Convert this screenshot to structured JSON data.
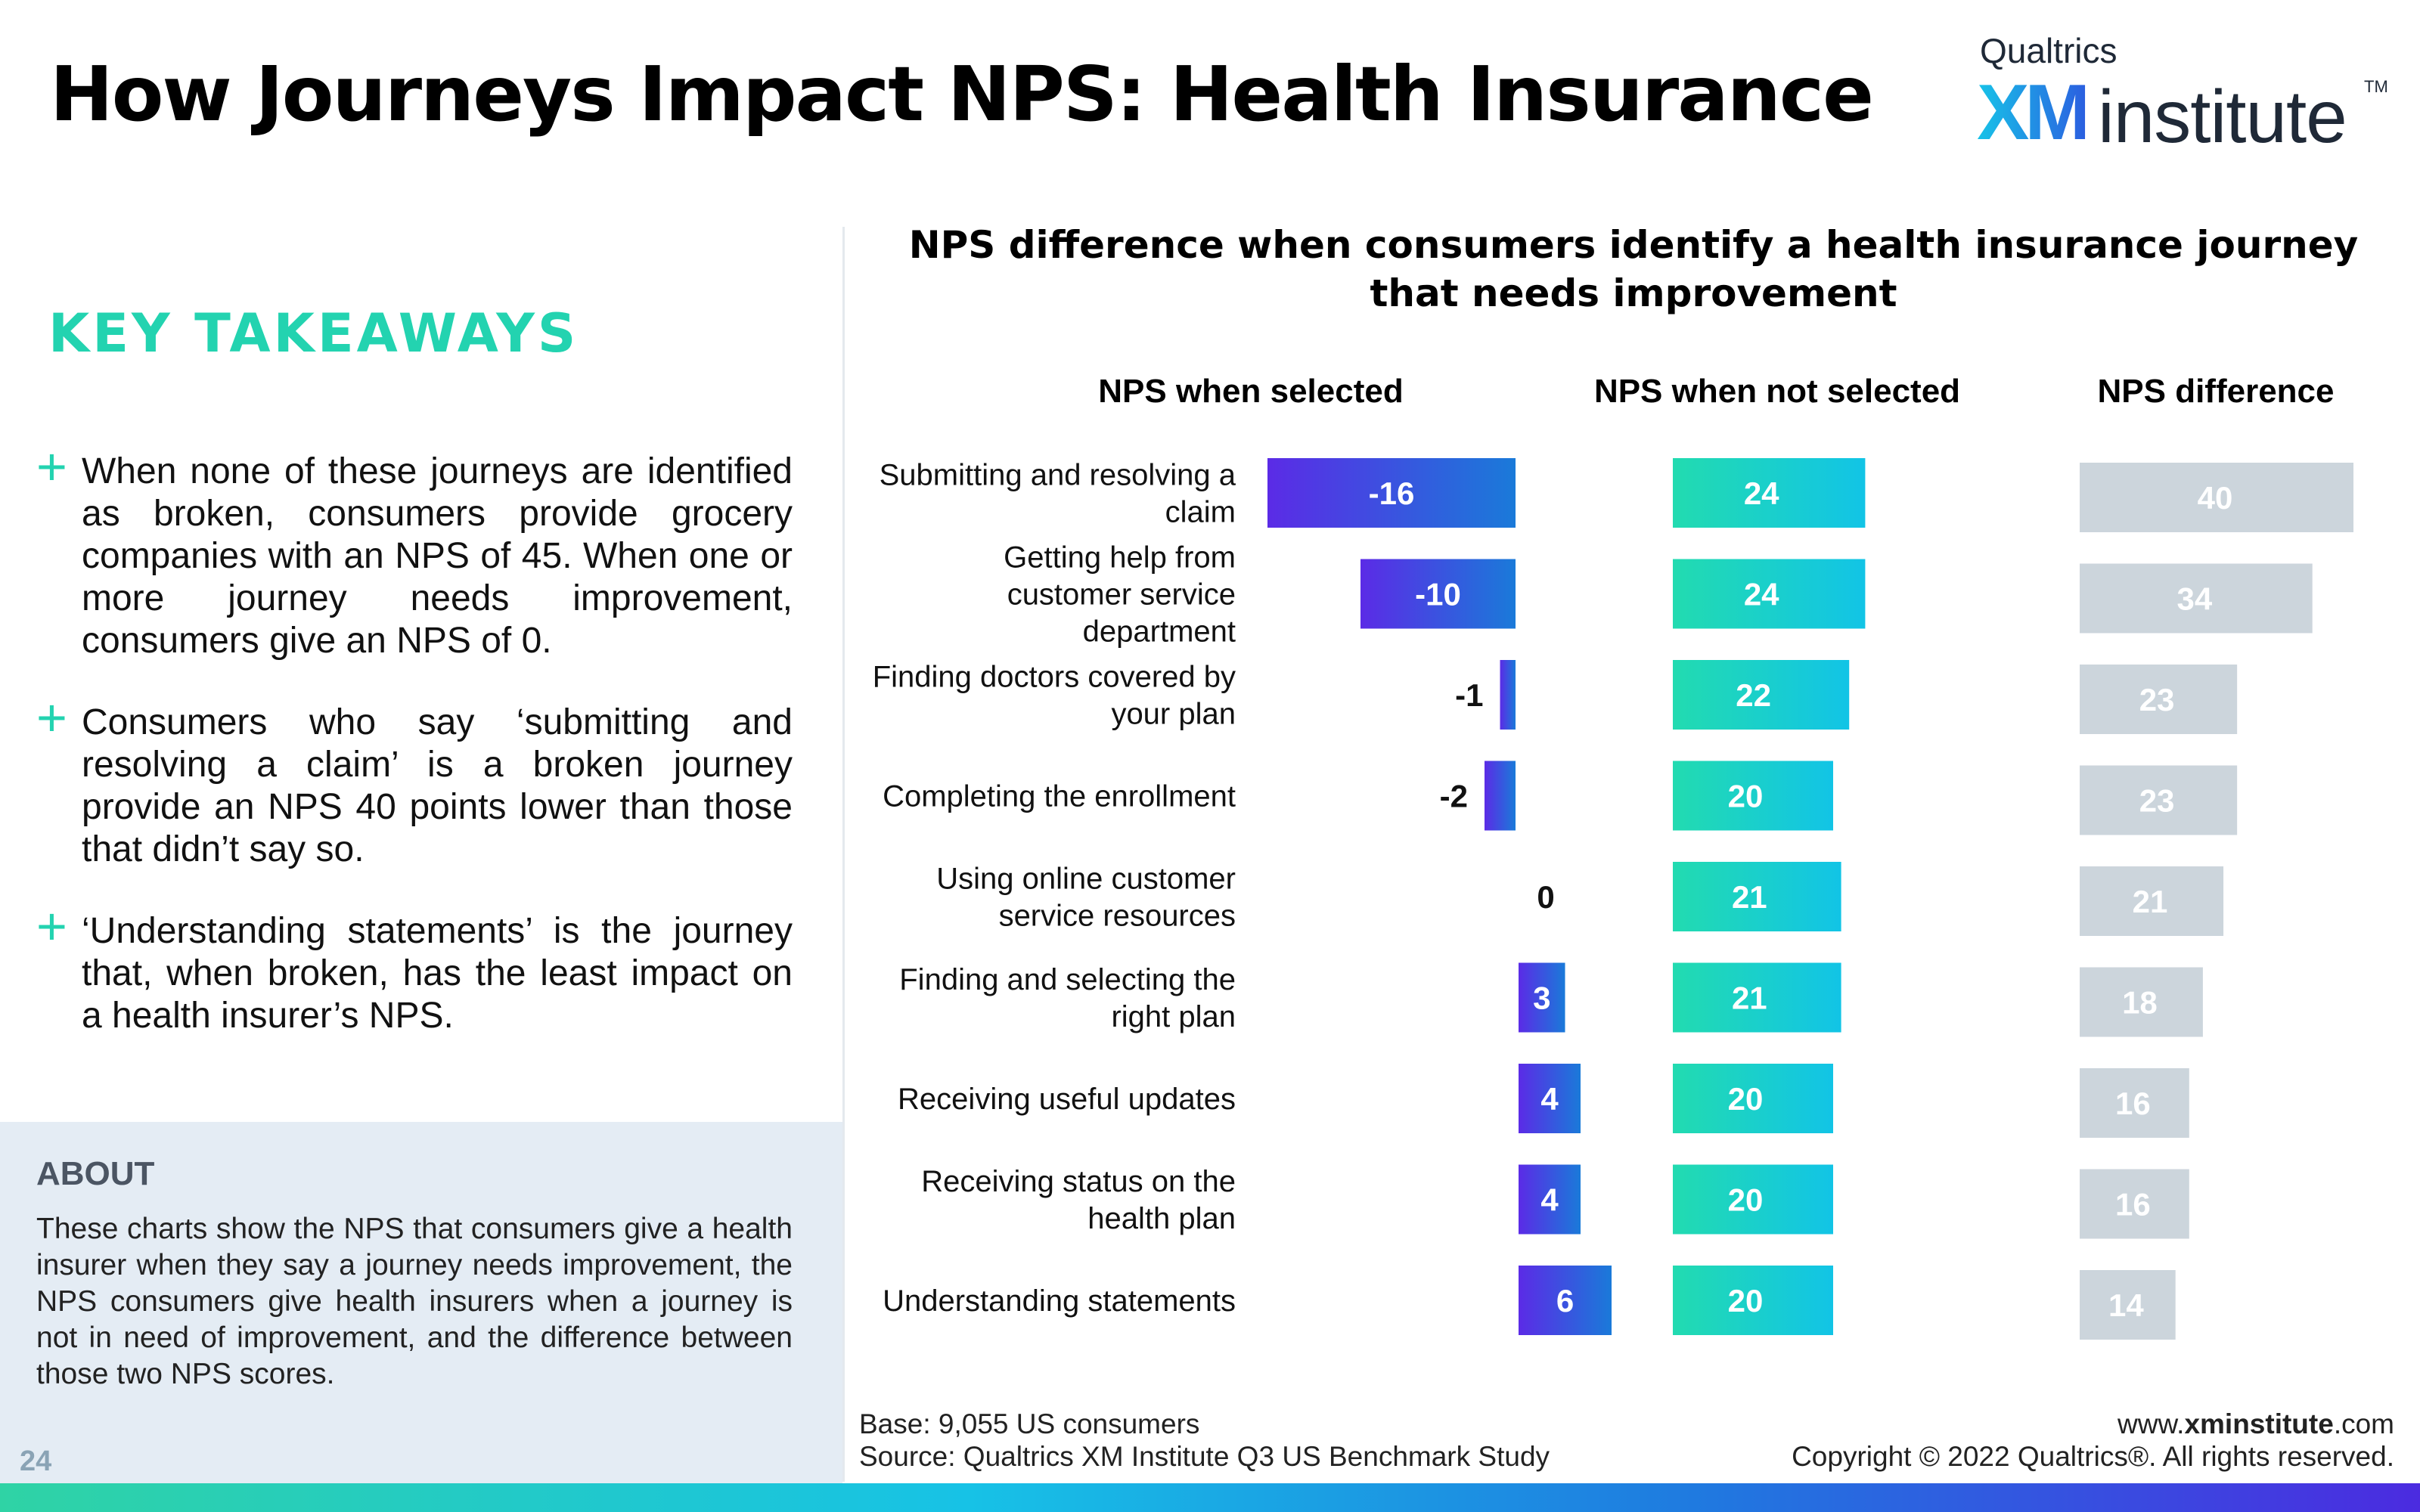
{
  "title": "How Journeys Impact NPS: Health Insurance",
  "logo": {
    "brand": "Qualtrics",
    "xm": "XM",
    "institute": "institute",
    "tm": "TM"
  },
  "takeaways": {
    "title": "KEY TAKEAWAYS",
    "items": [
      "When none of these journeys are identified as broken, consumers provide grocery companies with an NPS of 45. When one or more journey needs improvement, consumers give an NPS of 0.",
      "Consumers who say ‘submitting and resolving a claim’ is a broken journey provide an NPS 40 points lower than those that didn’t say so.",
      "‘Understanding statements’ is the journey that, when broken, has the least impact on a health insurer’s NPS."
    ]
  },
  "about": {
    "title": "ABOUT",
    "text": "These charts show the NPS that consumers give a health insurer when they say a journey needs improvement, the NPS consumers give health insurers when a journey is not in need of improvement, and the difference between those two NPS scores."
  },
  "page_number": "24",
  "footer": {
    "base": "Base: 9,055 US consumers",
    "source": "Source: Qualtrics XM Institute Q3 US Benchmark Study",
    "url_prefix": "www.",
    "url_bold": "xminstitute",
    "url_suffix": ".com",
    "copyright": "Copyright © 2022 Qualtrics®. All rights reserved."
  },
  "colors": {
    "accent": "#23d3b0",
    "selected_from": "#5b2be6",
    "selected_to": "#1a7ad9",
    "not_selected_from": "#22dbb0",
    "not_selected_to": "#12c4e6",
    "difference": "#ccd5dc"
  },
  "chart_data": {
    "type": "bar",
    "title": "NPS difference when consumers identify a health insurance journey that needs improvement",
    "categories": [
      [
        "Submitting and resolving a",
        "claim"
      ],
      [
        "Getting help from",
        "customer service",
        "department"
      ],
      [
        "Finding doctors covered by",
        "your plan"
      ],
      [
        "Completing the enrollment"
      ],
      [
        "Using online customer",
        "service resources"
      ],
      [
        "Finding and selecting the",
        "right plan"
      ],
      [
        "Receiving useful updates"
      ],
      [
        "Receiving status on the",
        "health plan"
      ],
      [
        "Understanding statements"
      ]
    ],
    "series": [
      {
        "name": "NPS when selected",
        "values": [
          -16,
          -10,
          -1,
          -2,
          0,
          3,
          4,
          4,
          6
        ]
      },
      {
        "name": "NPS when not selected",
        "values": [
          24,
          24,
          22,
          20,
          21,
          21,
          20,
          20,
          20
        ]
      },
      {
        "name": "NPS difference",
        "values": [
          40,
          34,
          23,
          23,
          21,
          18,
          16,
          16,
          14
        ]
      }
    ]
  }
}
